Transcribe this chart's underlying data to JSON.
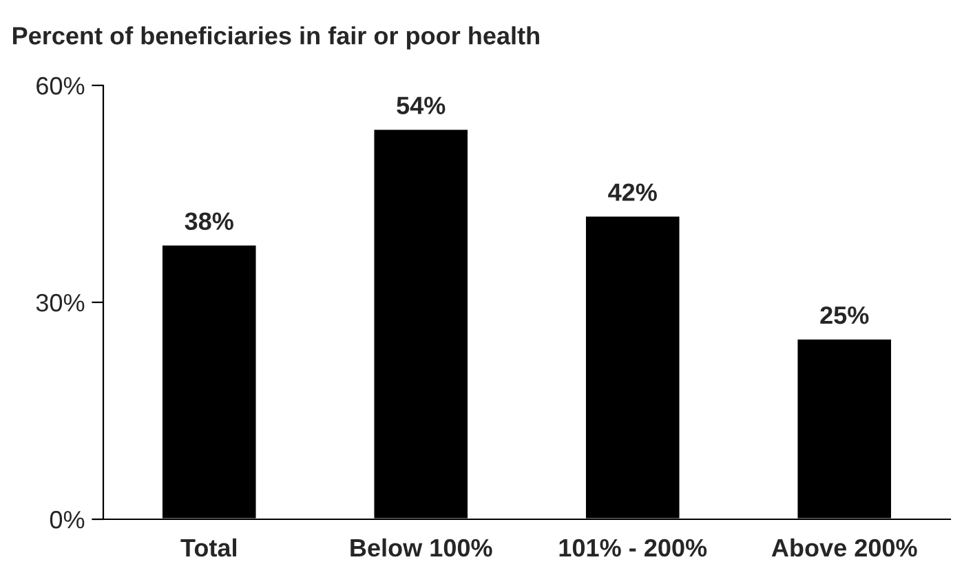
{
  "chart_data": {
    "type": "bar",
    "title": "Percent of beneficiaries in fair or poor health",
    "categories": [
      "Total",
      "Below 100%",
      "101% - 200%",
      "Above 200%"
    ],
    "values": [
      38,
      54,
      42,
      25
    ],
    "color": "#000000",
    "value_labels": [
      "38%",
      "54%",
      "42%",
      "25%"
    ],
    "ylim": [
      0,
      60
    ],
    "yticks": [
      {
        "value": 0,
        "label": "0%"
      },
      {
        "value": 30,
        "label": "30%"
      },
      {
        "value": 60,
        "label": "60%"
      }
    ],
    "grid": false,
    "legend": false
  }
}
